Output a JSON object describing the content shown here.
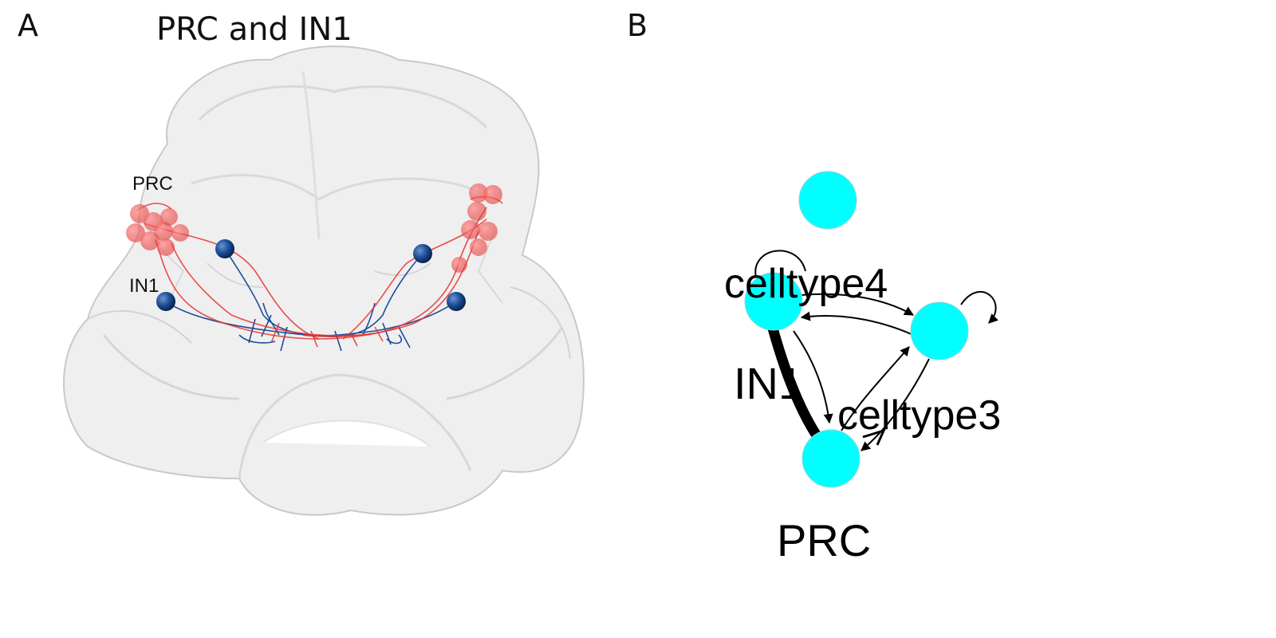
{
  "panel_a": {
    "letter": "A",
    "title": "PRC and IN1",
    "labels": {
      "prc": "PRC",
      "in1": "IN1"
    },
    "colors": {
      "prc": "#e8302e",
      "in1": "#1c4f9a",
      "brain_mesh": "#d4d4d4"
    }
  },
  "panel_b": {
    "letter": "B",
    "nodes": [
      {
        "id": "top",
        "label": ""
      },
      {
        "id": "celltype4",
        "label": "celltype4"
      },
      {
        "id": "celltype3",
        "label": "celltype3"
      },
      {
        "id": "IN1",
        "label": "IN1"
      },
      {
        "id": "PRC",
        "label": "PRC"
      }
    ],
    "colors": {
      "node": "#00ffff",
      "edge": "#000000"
    }
  }
}
